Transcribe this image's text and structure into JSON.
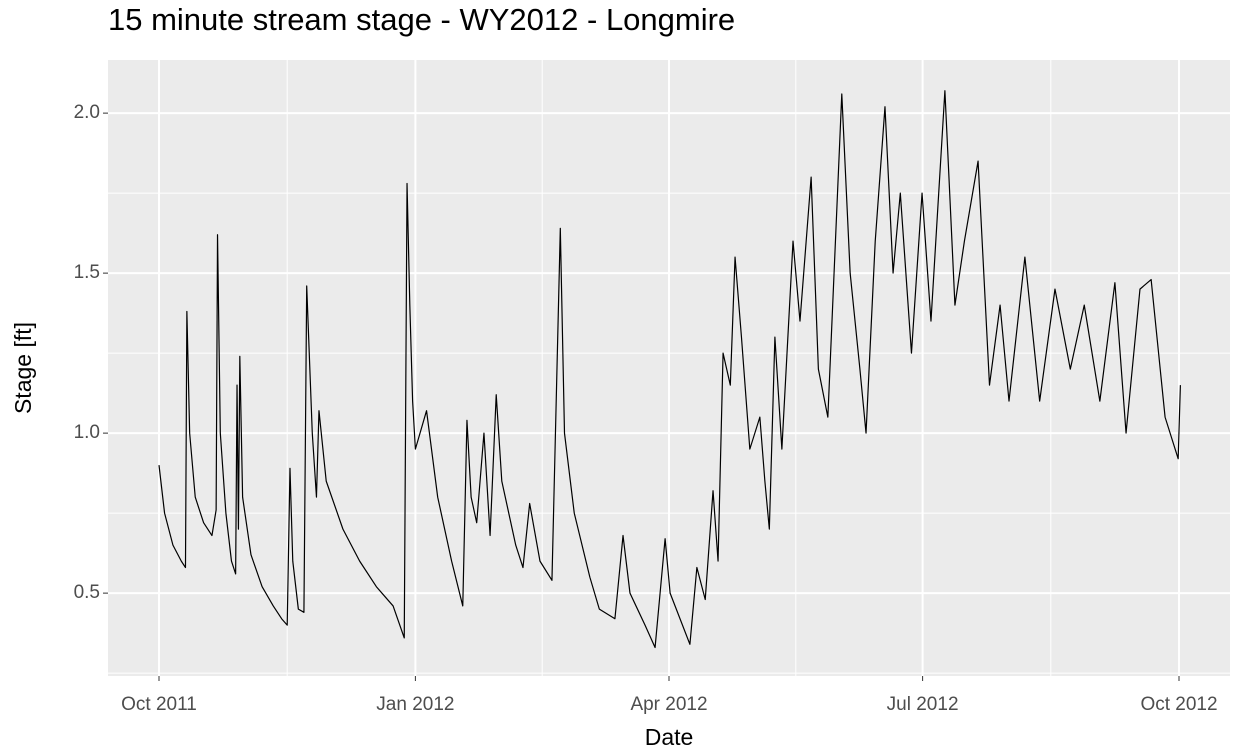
{
  "chart_data": {
    "type": "line",
    "title": "15 minute stream stage - WY2012 - Longmire",
    "x_label": "Date",
    "y_label": "Stage [ft]",
    "color": "#000000",
    "grid": true,
    "xlim": [
      -18.3,
      384.3
    ],
    "xticks": [
      {
        "value": 0,
        "label": "Oct 2011"
      },
      {
        "value": 92,
        "label": "Jan 2012"
      },
      {
        "value": 183,
        "label": "Apr 2012"
      },
      {
        "value": 274,
        "label": "Jul 2012"
      },
      {
        "value": 366,
        "label": "Oct 2012"
      }
    ],
    "x_minor_ticks": [
      46,
      137.5,
      228.5,
      320
    ],
    "ylim": [
      0.241,
      2.166
    ],
    "yticks": [
      0.5,
      {
        "value": 1,
        "label": "1.0"
      },
      {
        "value": 1.5,
        "label": "1.5"
      },
      {
        "value": 2,
        "label": "2.0"
      }
    ],
    "y_minor_ticks": [
      0.25,
      0.75,
      1.25,
      1.75
    ],
    "x": [
      0,
      2,
      5,
      8,
      9.5,
      10,
      11,
      13,
      16,
      19,
      20.5,
      21,
      22,
      24,
      26,
      27.5,
      28,
      28.5,
      29,
      30,
      33,
      37,
      41,
      44,
      46,
      47,
      48,
      50,
      52,
      53,
      55,
      56.5,
      57.4,
      60,
      66,
      72,
      78,
      84,
      88,
      89,
      90,
      91,
      92,
      96,
      100,
      105,
      109,
      110.5,
      112,
      114,
      116.6,
      118.8,
      121,
      123,
      128,
      130.6,
      133,
      136.7,
      141,
      144,
      145.5,
      149,
      154.6,
      158,
      163.6,
      166.5,
      169,
      174.4,
      178,
      181.6,
      183.4,
      190.5,
      193,
      196,
      198.8,
      200.6,
      202.4,
      205,
      206.7,
      209,
      212,
      215.6,
      217.4,
      219,
      221,
      223.5,
      227.5,
      230,
      234,
      236.6,
      240,
      245,
      248,
      251.5,
      253.7,
      257,
      260.5,
      263.4,
      266,
      270,
      273.8,
      277,
      282,
      285.6,
      289,
      293.9,
      298,
      301.8,
      305,
      310.7,
      316,
      321.5,
      327,
      332,
      337.6,
      343,
      347,
      352,
      356,
      361,
      365.7,
      366.5
    ],
    "values": [
      0.9,
      0.75,
      0.65,
      0.6,
      0.58,
      1.38,
      1.0,
      0.8,
      0.72,
      0.68,
      0.76,
      1.62,
      1.0,
      0.75,
      0.6,
      0.56,
      1.15,
      0.7,
      1.24,
      0.8,
      0.62,
      0.52,
      0.46,
      0.42,
      0.4,
      0.89,
      0.6,
      0.45,
      0.44,
      1.46,
      1.0,
      0.8,
      1.07,
      0.85,
      0.7,
      0.6,
      0.52,
      0.46,
      0.36,
      1.78,
      1.4,
      1.1,
      0.95,
      1.07,
      0.8,
      0.6,
      0.46,
      1.04,
      0.8,
      0.72,
      1.0,
      0.68,
      1.12,
      0.85,
      0.65,
      0.58,
      0.78,
      0.6,
      0.54,
      1.64,
      1.0,
      0.75,
      0.55,
      0.45,
      0.42,
      0.68,
      0.5,
      0.4,
      0.33,
      0.67,
      0.5,
      0.34,
      0.58,
      0.48,
      0.82,
      0.6,
      1.25,
      1.15,
      1.55,
      1.3,
      0.95,
      1.05,
      0.85,
      0.7,
      1.3,
      0.95,
      1.6,
      1.35,
      1.8,
      1.2,
      1.05,
      2.06,
      1.5,
      1.2,
      1.0,
      1.6,
      2.02,
      1.5,
      1.75,
      1.25,
      1.75,
      1.35,
      2.07,
      1.4,
      1.6,
      1.85,
      1.15,
      1.4,
      1.1,
      1.55,
      1.1,
      1.45,
      1.2,
      1.4,
      1.1,
      1.47,
      1.0,
      1.45,
      1.48,
      1.05,
      0.92,
      1.15
    ]
  }
}
